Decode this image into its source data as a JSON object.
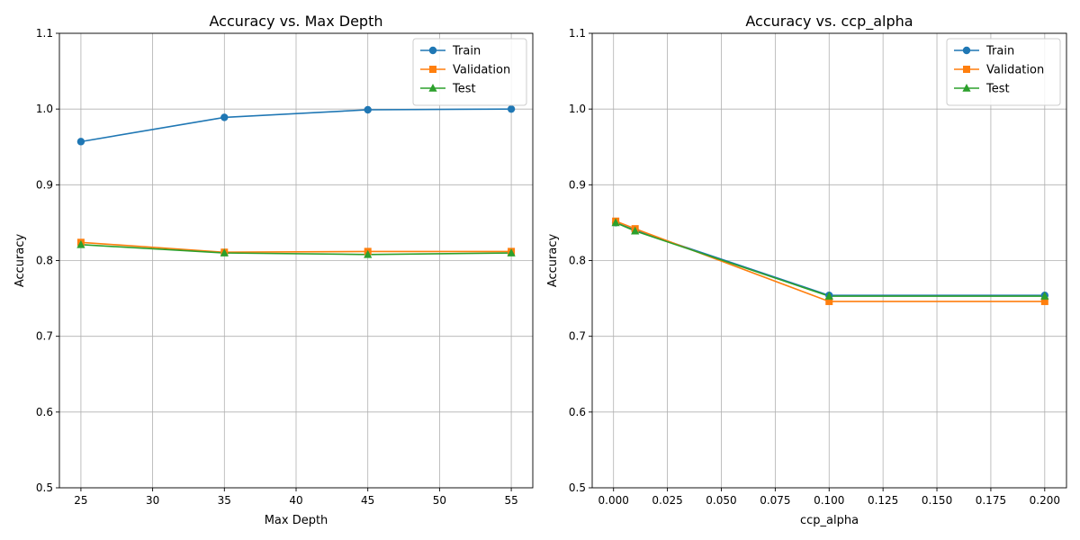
{
  "colors": {
    "train": "#1f77b4",
    "validation": "#ff7f0e",
    "test": "#2ca02c",
    "grid": "#b0b0b0"
  },
  "chart_data": [
    {
      "type": "line",
      "title": "Accuracy vs. Max Depth",
      "xlabel": "Max Depth",
      "ylabel": "Accuracy",
      "xlim": [
        23.5,
        56.5
      ],
      "ylim": [
        0.5,
        1.1
      ],
      "xticks": [
        25,
        30,
        35,
        40,
        45,
        50,
        55
      ],
      "xtick_labels": [
        "25",
        "30",
        "35",
        "40",
        "45",
        "50",
        "55"
      ],
      "yticks": [
        0.5,
        0.6,
        0.7,
        0.8,
        0.9,
        1.0,
        1.1
      ],
      "ytick_labels": [
        "0.5",
        "0.6",
        "0.7",
        "0.8",
        "0.9",
        "1.0",
        "1.1"
      ],
      "grid": true,
      "legend": "upper right",
      "x": [
        25,
        35,
        45,
        55
      ],
      "series": [
        {
          "name": "Train",
          "marker": "circle",
          "color": "#1f77b4",
          "values": [
            0.957,
            0.989,
            0.999,
            1.0
          ]
        },
        {
          "name": "Validation",
          "marker": "square",
          "color": "#ff7f0e",
          "values": [
            0.824,
            0.811,
            0.812,
            0.812
          ]
        },
        {
          "name": "Test",
          "marker": "triangle",
          "color": "#2ca02c",
          "values": [
            0.821,
            0.81,
            0.808,
            0.81
          ]
        }
      ]
    },
    {
      "type": "line",
      "title": "Accuracy vs. ccp_alpha",
      "xlabel": "ccp_alpha",
      "ylabel": "Accuracy",
      "xlim": [
        -0.0099,
        0.2101
      ],
      "ylim": [
        0.5,
        1.1
      ],
      "xticks": [
        0.0,
        0.025,
        0.05,
        0.075,
        0.1,
        0.125,
        0.15,
        0.175,
        0.2
      ],
      "xtick_labels": [
        "0.000",
        "0.025",
        "0.050",
        "0.075",
        "0.100",
        "0.125",
        "0.150",
        "0.175",
        "0.200"
      ],
      "yticks": [
        0.5,
        0.6,
        0.7,
        0.8,
        0.9,
        1.0,
        1.1
      ],
      "ytick_labels": [
        "0.5",
        "0.6",
        "0.7",
        "0.8",
        "0.9",
        "1.0",
        "1.1"
      ],
      "grid": true,
      "legend": "upper right",
      "x": [
        0.001,
        0.01,
        0.1,
        0.2
      ],
      "series": [
        {
          "name": "Train",
          "marker": "circle",
          "color": "#1f77b4",
          "values": [
            0.85,
            0.84,
            0.754,
            0.754
          ]
        },
        {
          "name": "Validation",
          "marker": "square",
          "color": "#ff7f0e",
          "values": [
            0.852,
            0.842,
            0.746,
            0.746
          ]
        },
        {
          "name": "Test",
          "marker": "triangle",
          "color": "#2ca02c",
          "values": [
            0.85,
            0.839,
            0.753,
            0.753
          ]
        }
      ]
    }
  ]
}
